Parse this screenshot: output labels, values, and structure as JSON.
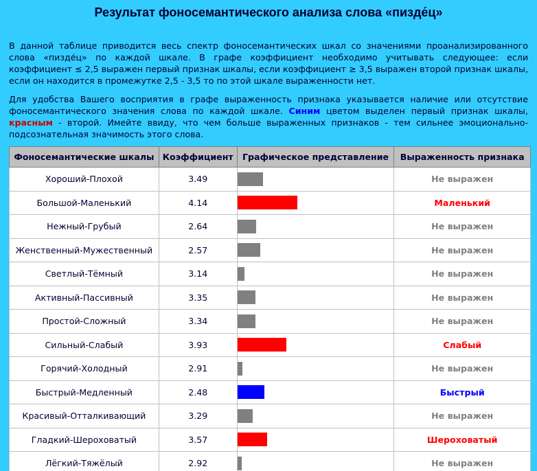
{
  "title": "Результат фоносемантического анализа слова «пизде́ц»",
  "paragraph1": "В данной таблице приводится весь спектр фоносемантических шкал со значениями проанализированного слова «пизде́ц» по каждой шкале. В графе коэффициент необходимо учитывать следующее: если коэффициент ≤ 2,5 выражен первый признак шкалы, если коэффициент ≥ 3,5 выражен второй признак шкалы, если он находится в промежутке 2,5 - 3,5 то по этой шкале выраженности нет.",
  "paragraph2": [
    "Для удобства Вашего восприятия в графе выраженность признака указывается наличие или отсутствие фоносемантического значения слова по каждой шкале.",
    "Синим",
    "цветом выделен первый признак шкалы,",
    "красным",
    "- второй. Имейте ввиду, что чем больше выраженных признаков - тем сильнее эмоционально-подсознательная значимость этого слова."
  ],
  "table": {
    "header": [
      "Фоносемантические шкалы",
      "Коэффициент",
      "Графическое представление",
      "Выраженность признака"
    ],
    "bar_xlim": [
      3,
      4.15
    ],
    "rows": [
      {
        "scale": "Хороший-Плохой",
        "coefficient": 3.49,
        "color": "#808080",
        "expressed": "Не выражен"
      },
      {
        "scale": "Большой-Маленький",
        "coefficient": 4.14,
        "color": "#ff0000",
        "expressed": "Маленький"
      },
      {
        "scale": "Нежный-Грубый",
        "coefficient": 2.64,
        "color": "#808080",
        "expressed": "Не выражен"
      },
      {
        "scale": "Женственный-Мужественный",
        "coefficient": 2.57,
        "color": "#808080",
        "expressed": "Не выражен"
      },
      {
        "scale": "Светлый-Тёмный",
        "coefficient": 3.14,
        "color": "#808080",
        "expressed": "Не выражен"
      },
      {
        "scale": "Активный-Пассивный",
        "coefficient": 3.35,
        "color": "#808080",
        "expressed": "Не выражен"
      },
      {
        "scale": "Простой-Сложный",
        "coefficient": 3.34,
        "color": "#808080",
        "expressed": "Не выражен"
      },
      {
        "scale": "Сильный-Слабый",
        "coefficient": 3.93,
        "color": "#ff0000",
        "expressed": "Слабый"
      },
      {
        "scale": "Горячий-Холодный",
        "coefficient": 2.91,
        "color": "#808080",
        "expressed": "Не выражен"
      },
      {
        "scale": "Быстрый-Медленный",
        "coefficient": 2.48,
        "color": "#0000ff",
        "expressed": "Быстрый"
      },
      {
        "scale": "Красивый-Отталкивающий",
        "coefficient": 3.29,
        "color": "#808080",
        "expressed": "Не выражен"
      },
      {
        "scale": "Гладкий-Шероховатый",
        "coefficient": 3.57,
        "color": "#ff0000",
        "expressed": "Шероховатый"
      },
      {
        "scale": "Лёгкий-Тяжёлый",
        "coefficient": 2.92,
        "color": "#808080",
        "expressed": "Не выражен"
      }
    ]
  }
}
